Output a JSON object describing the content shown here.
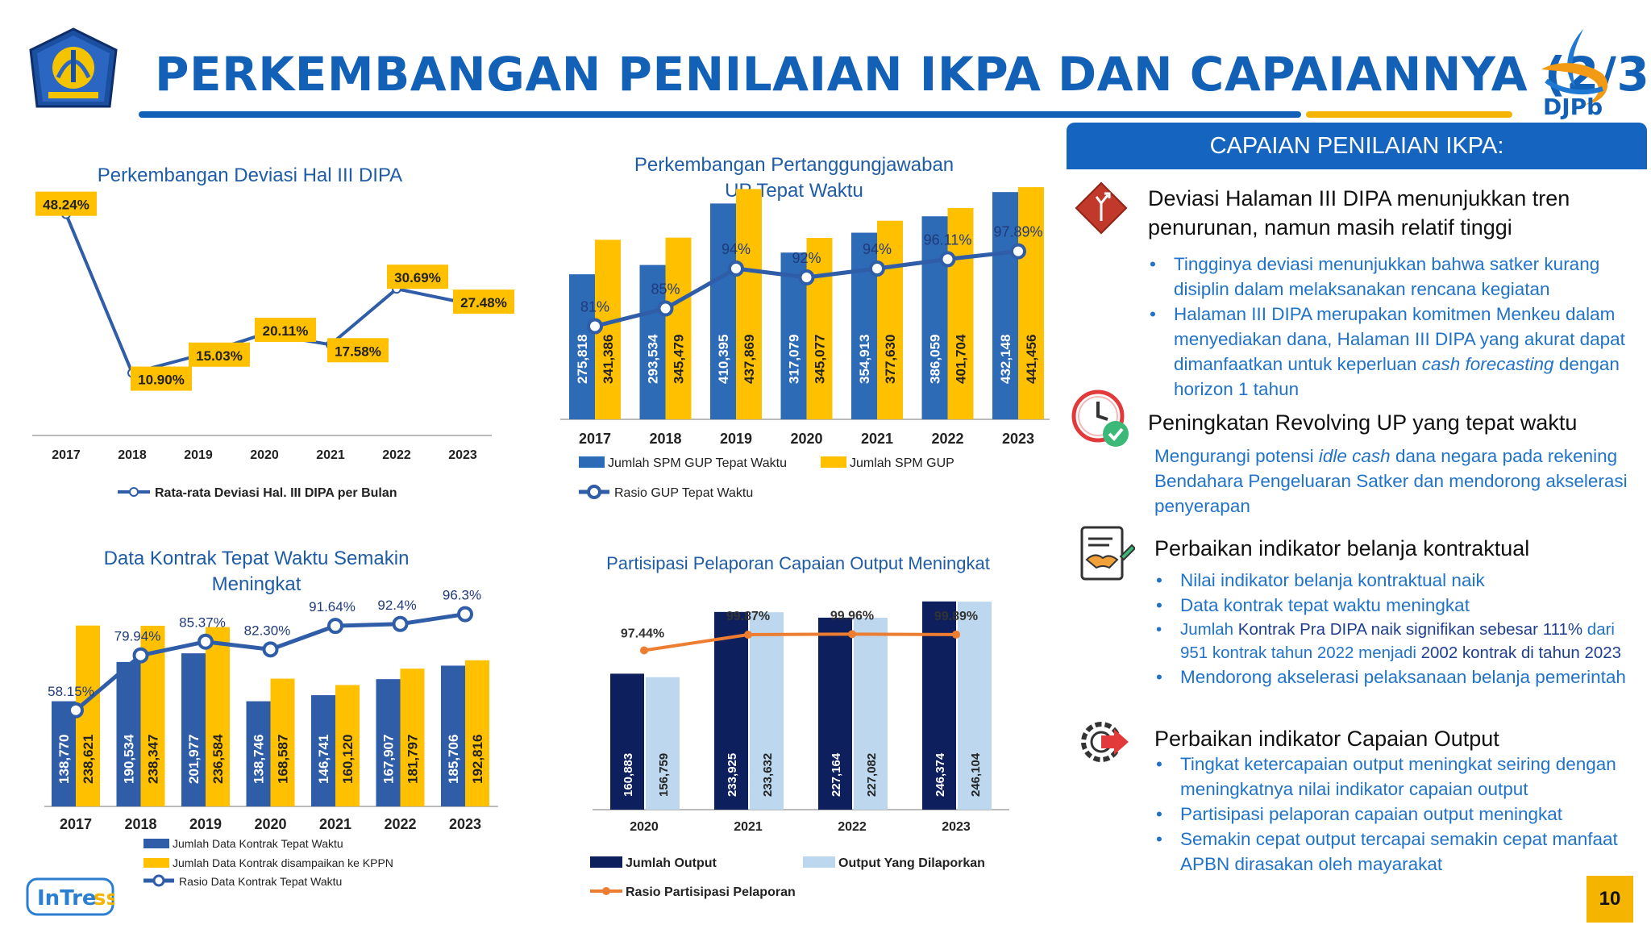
{
  "header": {
    "title": "PERKEMBANGAN PENILAIAN IKPA DAN CAPAIANNYA (2/3)",
    "logo_text": "DJPb"
  },
  "colors": {
    "blue": "#1361b6",
    "bar_blue": "#2e6bb7",
    "yellow": "#ffc000",
    "navy": "#0d1f5c",
    "light_blue": "#bdd7ee",
    "orange": "#ed7d31",
    "line_blue": "#2f5da8"
  },
  "chart_data": [
    {
      "id": "deviasi",
      "type": "line",
      "title": "Perkembangan Deviasi Hal III DIPA",
      "categories": [
        "2017",
        "2018",
        "2019",
        "2020",
        "2021",
        "2022",
        "2023"
      ],
      "series": [
        {
          "name": "Rata-rata Deviasi Hal. III DIPA per Bulan",
          "values": [
            48.24,
            10.9,
            15.03,
            20.11,
            17.58,
            30.69,
            27.48
          ]
        }
      ],
      "data_labels": [
        "48.24%",
        "10.90%",
        "15.03%",
        "20.11%",
        "17.58%",
        "30.69%",
        "27.48%"
      ],
      "ylim": [
        0,
        55
      ]
    },
    {
      "id": "up",
      "type": "bar",
      "title": "Perkembangan Pertanggungjawaban UP Tepat Waktu",
      "title_lines": [
        "Perkembangan Pertanggungjawaban",
        "UP Tepat Waktu"
      ],
      "categories": [
        "2017",
        "2018",
        "2019",
        "2020",
        "2021",
        "2022",
        "2023"
      ],
      "series": [
        {
          "name": "Jumlah SPM GUP Tepat Waktu",
          "values": [
            275818,
            293534,
            410395,
            317079,
            354913,
            386059,
            432148
          ],
          "labels": [
            "275,818",
            "293,534",
            "410,395",
            "317,079",
            "354,913",
            "386,059",
            "432,148"
          ]
        },
        {
          "name": "Jumlah SPM GUP",
          "values": [
            341386,
            345479,
            437869,
            345077,
            377630,
            401704,
            441456
          ],
          "labels": [
            "341,386",
            "345,479",
            "437,869",
            "345,077",
            "377,630",
            "401,704",
            "441,456"
          ]
        }
      ],
      "line": {
        "name": "Rasio GUP Tepat Waktu",
        "values": [
          81,
          85,
          94,
          92,
          94,
          96.11,
          97.89
        ],
        "labels": [
          "81%",
          "85%",
          "94%",
          "92%",
          "94%",
          "96.11%",
          "97.89%"
        ]
      },
      "ylim": [
        0,
        460000
      ]
    },
    {
      "id": "kontrak",
      "type": "bar",
      "title": "Data Kontrak Tepat Waktu Semakin Meningkat",
      "title_lines": [
        "Data Kontrak Tepat Waktu Semakin",
        "Meningkat"
      ],
      "categories": [
        "2017",
        "2018",
        "2019",
        "2020",
        "2021",
        "2022",
        "2023"
      ],
      "series": [
        {
          "name": "Jumlah Data Kontrak Tepat Waktu",
          "values": [
            138770,
            190534,
            201977,
            138746,
            146741,
            167907,
            185706
          ],
          "labels": [
            "138,770",
            "190,534",
            "201,977",
            "138,746",
            "146,741",
            "167,907",
            "185,706"
          ]
        },
        {
          "name": "Jumlah Data Kontrak disampaikan ke KPPN",
          "values": [
            238621,
            238347,
            236584,
            168587,
            160120,
            181797,
            192816
          ],
          "labels": [
            "238,621",
            "238,347",
            "236,584",
            "168,587",
            "160,120",
            "181,797",
            "192,816"
          ]
        }
      ],
      "line": {
        "name": "Rasio Data Kontrak Tepat Waktu",
        "values": [
          58.15,
          79.94,
          85.37,
          82.3,
          91.64,
          92.4,
          96.3
        ],
        "labels": [
          "58.15%",
          "79.94%",
          "85.37%",
          "82.30%",
          "91.64%",
          "92.4%",
          "96.3%"
        ]
      },
      "ylim": [
        0,
        250000
      ]
    },
    {
      "id": "output",
      "type": "bar",
      "title": "Partisipasi Pelaporan Capaian Output Meningkat",
      "categories": [
        "2020",
        "2021",
        "2022",
        "2023"
      ],
      "series": [
        {
          "name": "Jumlah Output",
          "values": [
            160883,
            233925,
            227164,
            246374
          ],
          "labels": [
            "160,883",
            "233,925",
            "227,164",
            "246,374"
          ]
        },
        {
          "name": "Output Yang Dilaporkan",
          "values": [
            156759,
            233632,
            227082,
            246104
          ],
          "labels": [
            "156,759",
            "233,632",
            "227,082",
            "246,104"
          ]
        }
      ],
      "line": {
        "name": "Rasio Partisipasi Pelaporan",
        "values": [
          97.44,
          99.87,
          99.96,
          99.89
        ],
        "labels": [
          "97.44%",
          "99.87%",
          "99.96%",
          "99.89%"
        ]
      },
      "ylim": [
        0,
        250000
      ]
    }
  ],
  "right_panel": {
    "header": "CAPAIAN PENILAIAN IKPA:",
    "sections": [
      {
        "title_lines": [
          "Deviasi Halaman III DIPA menunjukkan tren",
          "penurunan, namun masih relatif tinggi"
        ],
        "bullets": [
          "Tingginya deviasi menunjukkan bahwa satker kurang disiplin dalam melaksanakan rencana kegiatan",
          {
            "pre": "Halaman III DIPA merupakan komitmen Menkeu dalam menyediakan dana, Halaman III DIPA yang akurat dapat dimanfaatkan untuk keperluan ",
            "em": "cash forecasting",
            "post": " dengan horizon 1 tahun"
          }
        ]
      },
      {
        "title": "Peningkatan Revolving UP yang tepat waktu",
        "para": {
          "pre": "Mengurangi potensi ",
          "em": "idle cash",
          "post": " dana negara pada rekening Bendahara Pengeluaran Satker dan mendorong akselerasi penyerapan"
        }
      },
      {
        "title": "Perbaikan indikator belanja kontraktual",
        "bullets": [
          "Nilai indikator belanja kontraktual naik",
          "Data kontrak tepat waktu meningkat",
          {
            "p1": "Jumlah ",
            "s1": "Kontrak Pra DIPA naik signifikan sebesar 111%",
            "p2": " dari 951 kontrak tahun 2022 menjadi ",
            "s2": "2002 kontrak di tahun 2023"
          },
          "Mendorong akselerasi pelaksanaan belanja pemerintah"
        ]
      },
      {
        "title": "Perbaikan indikator Capaian Output",
        "bullets": [
          "Tingkat ketercapaian output meningkat seiring dengan meningkatnya nilai indikator capaian output",
          "Partisipasi pelaporan capaian output meningkat",
          "Semakin cepat output tercapai semakin cepat manfaat APBN dirasakan oleh mayarakat"
        ]
      }
    ]
  },
  "footer": {
    "brand": "InTress",
    "page_number": "10"
  }
}
